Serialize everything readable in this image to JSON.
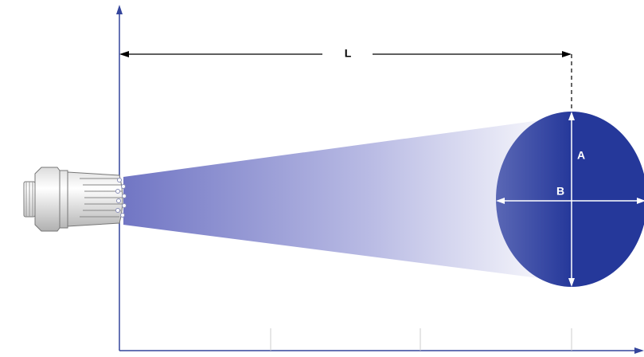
{
  "labels": {
    "length": "L",
    "height": "A",
    "width": "B"
  }
}
